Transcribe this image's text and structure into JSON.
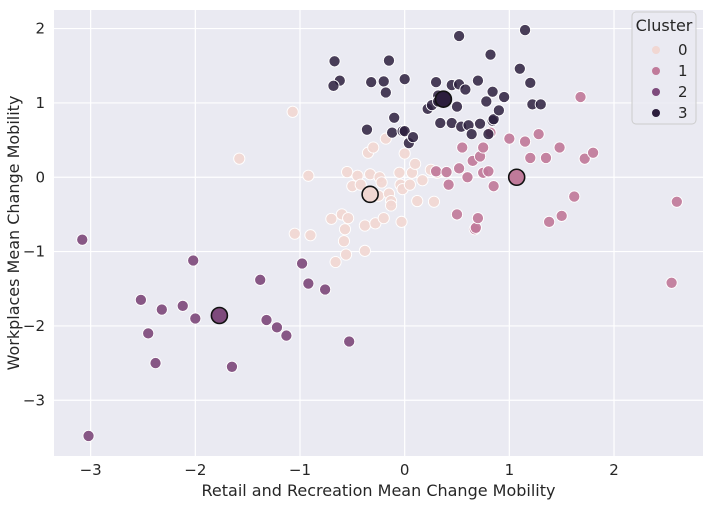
{
  "chart_data": {
    "type": "scatter",
    "title": "",
    "xlabel": "Retail and Recreation Mean Change Mobility",
    "ylabel": "Workplaces Mean Change Mobility",
    "xlim": [
      -3.35,
      2.85
    ],
    "ylim": [
      -3.75,
      2.25
    ],
    "xticks": [
      -3,
      -2,
      -1,
      0,
      1,
      2
    ],
    "yticks": [
      -3,
      -2,
      -1,
      0,
      1,
      2
    ],
    "grid": true,
    "legend": {
      "title": "Cluster",
      "placement": "top-right",
      "entries": [
        "0",
        "1",
        "2",
        "3"
      ]
    },
    "colors": {
      "cluster_0": "#f1d7d2",
      "cluster_1": "#c07a9a",
      "cluster_2": "#7e4a7c",
      "cluster_3": "#2c1e3d",
      "background": "#eaeaf2",
      "grid": "#ffffff"
    },
    "series": [
      {
        "name": "0",
        "points": [
          [
            -1.58,
            0.25
          ],
          [
            -1.07,
            0.88
          ],
          [
            -0.92,
            0.02
          ],
          [
            -1.05,
            -0.76
          ],
          [
            -0.9,
            -0.78
          ],
          [
            -0.7,
            -0.56
          ],
          [
            -0.66,
            -1.14
          ],
          [
            -0.58,
            -0.86
          ],
          [
            -0.56,
            -1.04
          ],
          [
            -0.6,
            -0.5
          ],
          [
            -0.54,
            -0.55
          ],
          [
            -0.57,
            -0.7
          ],
          [
            -0.55,
            0.07
          ],
          [
            -0.5,
            -0.12
          ],
          [
            -0.45,
            0.02
          ],
          [
            -0.42,
            -0.1
          ],
          [
            -0.38,
            -0.65
          ],
          [
            -0.38,
            -0.99
          ],
          [
            -0.35,
            0.33
          ],
          [
            -0.33,
            0.04
          ],
          [
            -0.3,
            0.4
          ],
          [
            -0.28,
            -0.62
          ],
          [
            -0.25,
            -0.25
          ],
          [
            -0.24,
            0.0
          ],
          [
            -0.22,
            -0.07
          ],
          [
            -0.2,
            -0.55
          ],
          [
            -0.18,
            0.52
          ],
          [
            -0.15,
            -0.22
          ],
          [
            -0.13,
            -0.32
          ],
          [
            -0.13,
            -0.38
          ],
          [
            -0.05,
            0.06
          ],
          [
            -0.04,
            -0.1
          ],
          [
            -0.03,
            -0.6
          ],
          [
            -0.02,
            -0.16
          ],
          [
            0.0,
            0.32
          ],
          [
            0.05,
            -0.1
          ],
          [
            0.07,
            0.06
          ],
          [
            0.1,
            0.18
          ],
          [
            0.12,
            -0.32
          ],
          [
            0.17,
            -0.04
          ],
          [
            0.25,
            0.1
          ],
          [
            0.28,
            -0.33
          ],
          [
            0.31,
            0.06
          ]
        ]
      },
      {
        "name": "1",
        "points": [
          [
            0.3,
            0.08
          ],
          [
            0.4,
            0.07
          ],
          [
            0.42,
            -0.1
          ],
          [
            0.5,
            -0.5
          ],
          [
            0.52,
            0.12
          ],
          [
            0.55,
            0.4
          ],
          [
            0.6,
            0.0
          ],
          [
            0.65,
            0.22
          ],
          [
            0.67,
            -0.7
          ],
          [
            0.68,
            -0.68
          ],
          [
            0.7,
            -0.55
          ],
          [
            0.72,
            0.28
          ],
          [
            0.75,
            0.06
          ],
          [
            0.75,
            0.4
          ],
          [
            0.8,
            0.08
          ],
          [
            0.82,
            0.6
          ],
          [
            0.85,
            -0.12
          ],
          [
            1.0,
            0.52
          ],
          [
            1.15,
            0.48
          ],
          [
            1.2,
            0.26
          ],
          [
            1.28,
            0.58
          ],
          [
            1.35,
            0.26
          ],
          [
            1.38,
            -0.6
          ],
          [
            1.48,
            0.4
          ],
          [
            1.5,
            -0.52
          ],
          [
            1.62,
            -0.26
          ],
          [
            1.68,
            1.08
          ],
          [
            1.72,
            0.25
          ],
          [
            1.8,
            0.33
          ],
          [
            2.55,
            -1.42
          ],
          [
            2.6,
            -0.33
          ]
        ]
      },
      {
        "name": "2",
        "points": [
          [
            -3.08,
            -0.84
          ],
          [
            -3.02,
            -3.48
          ],
          [
            -2.52,
            -1.65
          ],
          [
            -2.45,
            -2.1
          ],
          [
            -2.38,
            -2.5
          ],
          [
            -2.32,
            -1.78
          ],
          [
            -2.12,
            -1.73
          ],
          [
            -2.02,
            -1.12
          ],
          [
            -2.0,
            -1.9
          ],
          [
            -1.65,
            -2.55
          ],
          [
            -1.38,
            -1.38
          ],
          [
            -1.32,
            -1.92
          ],
          [
            -1.22,
            -2.02
          ],
          [
            -1.13,
            -2.13
          ],
          [
            -0.98,
            -1.16
          ],
          [
            -0.92,
            -1.43
          ],
          [
            -0.76,
            -1.51
          ],
          [
            -0.53,
            -2.21
          ]
        ]
      },
      {
        "name": "3",
        "points": [
          [
            -0.67,
            1.56
          ],
          [
            -0.62,
            1.3
          ],
          [
            -0.68,
            1.23
          ],
          [
            -0.36,
            0.64
          ],
          [
            -0.32,
            1.28
          ],
          [
            -0.2,
            1.29
          ],
          [
            -0.18,
            1.14
          ],
          [
            -0.15,
            1.57
          ],
          [
            -0.12,
            0.6
          ],
          [
            -0.1,
            0.8
          ],
          [
            -0.02,
            0.62
          ],
          [
            0.0,
            1.32
          ],
          [
            0.0,
            0.62
          ],
          [
            0.04,
            0.46
          ],
          [
            0.08,
            0.54
          ],
          [
            0.22,
            0.92
          ],
          [
            0.26,
            0.97
          ],
          [
            0.3,
            1.28
          ],
          [
            0.32,
            1.1
          ],
          [
            0.32,
            1.02
          ],
          [
            0.34,
            0.73
          ],
          [
            0.45,
            0.73
          ],
          [
            0.45,
            1.24
          ],
          [
            0.5,
            0.95
          ],
          [
            0.52,
            1.9
          ],
          [
            0.52,
            1.25
          ],
          [
            0.54,
            0.68
          ],
          [
            0.58,
            1.18
          ],
          [
            0.61,
            0.7
          ],
          [
            0.64,
            0.58
          ],
          [
            0.7,
            1.3
          ],
          [
            0.72,
            0.72
          ],
          [
            0.78,
            1.02
          ],
          [
            0.8,
            0.58
          ],
          [
            0.82,
            1.65
          ],
          [
            0.84,
            0.76
          ],
          [
            0.84,
            1.15
          ],
          [
            0.85,
            0.78
          ],
          [
            0.9,
            0.9
          ],
          [
            0.95,
            1.08
          ],
          [
            1.1,
            1.46
          ],
          [
            1.15,
            1.98
          ],
          [
            1.2,
            1.27
          ],
          [
            1.22,
            0.98
          ],
          [
            1.3,
            0.98
          ]
        ]
      }
    ],
    "centroids": [
      {
        "cluster": "0",
        "x": -0.33,
        "y": -0.23
      },
      {
        "cluster": "1",
        "x": 1.07,
        "y": 0.0
      },
      {
        "cluster": "2",
        "x": -1.77,
        "y": -1.86
      },
      {
        "cluster": "3",
        "x": 0.37,
        "y": 1.05
      }
    ]
  }
}
